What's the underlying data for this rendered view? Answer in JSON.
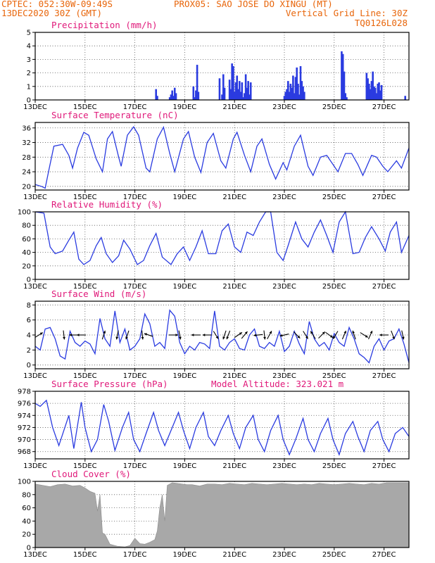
{
  "header": {
    "line1_left": "CPTEC:  052:30W-09:49S",
    "line1_right": "PROX05: SAO JOSE DO XINGU (MT)",
    "line2_left": "13DEC2020 30Z (GMT)",
    "line2_right": "Vertical Grid Line: 30Z",
    "line3_right": "TQ0126L028"
  },
  "colors": {
    "header": "#e8650a",
    "title": "#e0197a",
    "series": "#2a3be0",
    "cloud_fill": "#a8a8a8"
  },
  "x_axis": {
    "tick_labels": [
      "13DEC",
      "15DEC",
      "17DEC",
      "19DEC",
      "21DEC",
      "23DEC",
      "25DEC",
      "27DEC"
    ],
    "tick_days": [
      0,
      2,
      4,
      6,
      8,
      10,
      12,
      14
    ],
    "range_days": [
      0,
      15
    ]
  },
  "chart_data": [
    {
      "type": "bar",
      "title": "Precipitation (mm/h)",
      "ylim": [
        0,
        5
      ],
      "yticks": [
        0,
        1,
        2,
        3,
        4,
        5
      ],
      "grid": true,
      "x_units": "days since 13DEC",
      "x": [
        4.85,
        4.9,
        5.4,
        5.45,
        5.5,
        5.55,
        5.6,
        5.65,
        6.35,
        6.4,
        6.45,
        6.5,
        6.55,
        7.4,
        7.5,
        7.55,
        7.6,
        7.8,
        7.85,
        7.9,
        7.95,
        8.0,
        8.05,
        8.1,
        8.15,
        8.2,
        8.25,
        8.3,
        8.35,
        8.4,
        8.45,
        8.5,
        8.55,
        8.6,
        8.65,
        10.0,
        10.05,
        10.1,
        10.15,
        10.2,
        10.25,
        10.3,
        10.35,
        10.4,
        10.45,
        10.5,
        10.55,
        10.6,
        10.65,
        10.7,
        10.75,
        10.8,
        12.3,
        12.35,
        12.4,
        12.45,
        12.5,
        13.3,
        13.35,
        13.4,
        13.45,
        13.5,
        13.55,
        13.6,
        13.65,
        13.7,
        13.75,
        13.8,
        13.85,
        13.9,
        14.85
      ],
      "values": [
        0.8,
        0.3,
        0.2,
        0.4,
        0.7,
        0.3,
        0.9,
        0.5,
        1.0,
        0.2,
        0.7,
        2.6,
        0.6,
        1.6,
        0.4,
        1.9,
        0.9,
        1.5,
        0.8,
        2.7,
        2.5,
        0.6,
        1.3,
        1.8,
        0.8,
        1.4,
        0.6,
        1.3,
        0.2,
        0.5,
        1.9,
        0.9,
        1.4,
        0.4,
        1.3,
        0.3,
        0.6,
        0.8,
        1.4,
        0.6,
        1.2,
        0.9,
        1.8,
        0.5,
        1.7,
        2.4,
        1.2,
        0.4,
        2.5,
        1.4,
        1.0,
        0.6,
        3.6,
        3.4,
        2.1,
        0.5,
        0.2,
        2.0,
        1.6,
        1.2,
        0.8,
        1.4,
        2.1,
        1.0,
        0.9,
        0.5,
        1.2,
        1.3,
        0.7,
        1.1,
        0.3
      ]
    },
    {
      "type": "line",
      "title": "Surface Temperature (nC)",
      "ylim": [
        19,
        37.5
      ],
      "yticks": [
        20,
        24,
        28,
        32,
        36
      ],
      "grid": true,
      "x_units": "days since 13DEC",
      "x": [
        0.0,
        0.25,
        0.4,
        0.55,
        0.75,
        1.1,
        1.35,
        1.5,
        1.7,
        1.95,
        2.15,
        2.45,
        2.7,
        2.9,
        3.1,
        3.35,
        3.45,
        3.7,
        3.95,
        4.15,
        4.45,
        4.6,
        4.9,
        5.15,
        5.4,
        5.6,
        5.95,
        6.15,
        6.4,
        6.65,
        6.9,
        7.15,
        7.45,
        7.65,
        7.95,
        8.1,
        8.4,
        8.65,
        8.9,
        9.1,
        9.4,
        9.65,
        9.95,
        10.1,
        10.4,
        10.65,
        10.95,
        11.15,
        11.45,
        11.7,
        11.95,
        12.15,
        12.45,
        12.7,
        12.95,
        13.15,
        13.5,
        13.7,
        13.95,
        14.15,
        14.5,
        14.7,
        15.0
      ],
      "values": [
        20.5,
        20,
        19.5,
        24.5,
        31,
        31.5,
        28.5,
        25,
        30.5,
        34.8,
        34,
        27.5,
        24,
        33,
        35,
        28,
        25.5,
        34,
        36.3,
        34,
        25,
        24,
        33,
        36.2,
        29,
        24,
        33,
        35,
        28,
        23.8,
        32,
        34.5,
        27,
        25,
        33,
        34.8,
        28.5,
        24,
        31,
        33,
        26,
        22,
        26.5,
        24.5,
        31,
        34,
        25.5,
        23,
        28,
        28.5,
        26,
        24,
        29,
        29,
        26,
        23,
        28.5,
        28,
        25.5,
        24,
        27,
        25,
        30.5
      ]
    },
    {
      "type": "line",
      "title": "Relative Humidity (%)",
      "ylim": [
        0,
        100
      ],
      "yticks": [
        0,
        20,
        40,
        60,
        80,
        100
      ],
      "grid": true,
      "x_units": "days since 13DEC",
      "x": [
        0.0,
        0.35,
        0.6,
        0.8,
        1.1,
        1.35,
        1.55,
        1.75,
        1.95,
        2.2,
        2.45,
        2.65,
        2.85,
        3.1,
        3.35,
        3.55,
        3.8,
        4.1,
        4.35,
        4.6,
        4.85,
        5.1,
        5.45,
        5.7,
        5.95,
        6.2,
        6.45,
        6.7,
        6.95,
        7.25,
        7.5,
        7.75,
        8.0,
        8.25,
        8.5,
        8.75,
        9.0,
        9.25,
        9.45,
        9.7,
        9.95,
        10.15,
        10.45,
        10.7,
        10.95,
        11.2,
        11.45,
        11.7,
        11.95,
        12.2,
        12.45,
        12.75,
        13.0,
        13.25,
        13.5,
        13.8,
        14.05,
        14.25,
        14.5,
        14.7,
        15.0
      ],
      "values": [
        100,
        98,
        48,
        38,
        42,
        58,
        70,
        30,
        22,
        28,
        50,
        62,
        38,
        25,
        35,
        58,
        45,
        22,
        28,
        50,
        68,
        33,
        22,
        38,
        48,
        28,
        48,
        72,
        38,
        38,
        72,
        82,
        48,
        40,
        70,
        65,
        85,
        100,
        100,
        40,
        28,
        50,
        85,
        60,
        48,
        70,
        88,
        65,
        40,
        85,
        100,
        38,
        40,
        62,
        78,
        60,
        42,
        70,
        85,
        40,
        65
      ]
    },
    {
      "type": "line",
      "title": "Surface Wind (m/s)",
      "ylim": [
        -0.5,
        8.5
      ],
      "yticks": [
        0,
        2,
        4,
        6,
        8
      ],
      "grid": true,
      "x_units": "days since 13DEC",
      "x": [
        0.0,
        0.2,
        0.4,
        0.6,
        0.8,
        1.0,
        1.2,
        1.4,
        1.6,
        1.8,
        2.0,
        2.2,
        2.4,
        2.6,
        2.8,
        3.0,
        3.2,
        3.4,
        3.6,
        3.8,
        4.0,
        4.2,
        4.4,
        4.6,
        4.8,
        5.0,
        5.2,
        5.4,
        5.6,
        5.8,
        6.0,
        6.2,
        6.4,
        6.6,
        6.8,
        7.0,
        7.2,
        7.4,
        7.6,
        7.8,
        8.0,
        8.2,
        8.4,
        8.6,
        8.8,
        9.0,
        9.2,
        9.4,
        9.6,
        9.8,
        10.0,
        10.2,
        10.4,
        10.6,
        10.8,
        11.0,
        11.2,
        11.4,
        11.6,
        11.8,
        12.0,
        12.2,
        12.4,
        12.6,
        12.8,
        13.0,
        13.2,
        13.4,
        13.6,
        13.8,
        14.0,
        14.2,
        14.4,
        14.6,
        14.8,
        15.0
      ],
      "values": [
        2.5,
        2.0,
        4.8,
        5.0,
        3.5,
        1.2,
        0.8,
        4.5,
        3.0,
        2.5,
        3.2,
        2.8,
        1.5,
        6.2,
        3.5,
        2.5,
        7.2,
        3.0,
        4.8,
        2.0,
        2.5,
        3.5,
        6.8,
        5.5,
        2.5,
        3.0,
        2.2,
        7.3,
        6.5,
        3.0,
        1.5,
        2.5,
        2.0,
        3.0,
        2.8,
        2.2,
        7.2,
        2.5,
        2.0,
        3.0,
        3.5,
        2.2,
        2.0,
        4.0,
        4.8,
        2.5,
        2.2,
        3.0,
        2.5,
        4.5,
        1.8,
        2.5,
        4.5,
        2.8,
        1.5,
        5.8,
        3.5,
        2.5,
        3.0,
        2.0,
        4.2,
        3.0,
        2.5,
        5.0,
        3.5,
        1.5,
        1.0,
        0.3,
        2.5,
        3.5,
        2.0,
        3.2,
        3.5,
        4.8,
        2.8,
        0.3
      ]
    },
    {
      "type": "line",
      "title": "Surface Pressure (hPa)",
      "annotation": "Model Altitude: 323.021 m",
      "ylim": [
        966.8,
        978
      ],
      "yticks": [
        968,
        970,
        972,
        974,
        976,
        978
      ],
      "grid": true,
      "x_units": "days since 13DEC",
      "x": [
        0.0,
        0.2,
        0.45,
        0.7,
        0.95,
        1.15,
        1.35,
        1.55,
        1.85,
        2.0,
        2.25,
        2.5,
        2.75,
        2.95,
        3.2,
        3.5,
        3.75,
        3.95,
        4.2,
        4.45,
        4.75,
        4.95,
        5.2,
        5.45,
        5.75,
        5.95,
        6.2,
        6.45,
        6.75,
        6.95,
        7.2,
        7.45,
        7.75,
        7.95,
        8.2,
        8.45,
        8.75,
        8.95,
        9.2,
        9.45,
        9.75,
        9.95,
        10.2,
        10.45,
        10.75,
        10.95,
        11.2,
        11.45,
        11.75,
        11.95,
        12.2,
        12.45,
        12.75,
        12.95,
        13.2,
        13.45,
        13.75,
        13.95,
        14.2,
        14.45,
        14.75,
        15.0
      ],
      "values": [
        976,
        975.5,
        976.5,
        972,
        969,
        971.5,
        974,
        968.5,
        976.2,
        972,
        968,
        970,
        975.8,
        973,
        968.2,
        972,
        974.5,
        970,
        968,
        971,
        974.5,
        971.5,
        969,
        971.5,
        974.5,
        971.5,
        968.5,
        972,
        974.5,
        970.5,
        969,
        971.5,
        974,
        971,
        968.5,
        972,
        974,
        970,
        968,
        971.5,
        974,
        970,
        967.5,
        970,
        973.5,
        970,
        968,
        971,
        973.5,
        970,
        967.5,
        971,
        973,
        970.5,
        968,
        971.5,
        973,
        970,
        968,
        971,
        972,
        970.5
      ]
    },
    {
      "type": "area",
      "title": "Cloud Cover (%)",
      "ylim": [
        0,
        100
      ],
      "yticks": [
        0,
        20,
        40,
        60,
        80,
        100
      ],
      "grid": true,
      "x_units": "days since 13DEC",
      "x": [
        0.0,
        0.3,
        0.6,
        0.9,
        1.2,
        1.5,
        1.8,
        2.0,
        2.2,
        2.4,
        2.5,
        2.6,
        2.7,
        2.8,
        3.0,
        3.3,
        3.6,
        3.8,
        4.0,
        4.2,
        4.4,
        4.6,
        4.8,
        4.9,
        5.0,
        5.1,
        5.2,
        5.3,
        5.5,
        5.7,
        5.9,
        6.1,
        6.3,
        6.6,
        6.9,
        7.2,
        7.5,
        7.8,
        8.1,
        8.4,
        8.7,
        9.0,
        9.3,
        9.6,
        9.9,
        10.2,
        10.5,
        10.8,
        11.1,
        11.4,
        11.7,
        12.0,
        12.3,
        12.6,
        12.9,
        13.2,
        13.5,
        13.8,
        14.1,
        14.4,
        14.7,
        15.0
      ],
      "values": [
        96,
        94,
        92,
        95,
        96,
        93,
        94,
        90,
        85,
        82,
        55,
        80,
        22,
        20,
        5,
        2,
        1,
        3,
        14,
        6,
        5,
        8,
        12,
        25,
        60,
        80,
        40,
        94,
        98,
        97,
        96,
        95,
        95,
        93,
        96,
        96,
        95,
        97,
        96,
        95,
        97,
        96,
        95,
        96,
        97,
        96,
        95,
        96,
        95,
        97,
        96,
        95,
        96,
        97,
        96,
        95,
        97,
        96,
        98,
        98,
        98,
        98
      ]
    },
    {
      "type": "wind_vectors",
      "title": "Surface Wind (m/s) direction",
      "x_units": "days since 13DEC",
      "x": [
        0.15,
        1.15,
        1.55,
        1.85,
        2.75,
        3.3,
        3.7,
        4.3,
        4.55,
        5.55,
        5.8,
        6.45,
        6.9,
        7.25,
        7.6,
        7.75,
        8.15,
        8.4,
        8.95,
        9.2,
        9.4,
        10.0,
        10.5,
        10.85,
        11.15,
        11.5,
        11.8,
        12.05,
        12.4,
        12.8,
        13.2,
        13.45,
        14.0,
        14.35,
        14.75
      ],
      "u": [
        0.8,
        0.1,
        -0.8,
        -0.9,
        0.3,
        -0.2,
        -0.3,
        0.1,
        -0.9,
        0.5,
        0.2,
        -0.4,
        -0.7,
        0.5,
        -0.3,
        -0.3,
        0.6,
        0.5,
        -0.9,
        0.1,
        0.5,
        -0.9,
        0.7,
        0.5,
        -0.5,
        0.6,
        0.7,
        -0.5,
        0.3,
        -0.3,
        0.8,
        0.4,
        -0.9,
        0.3,
        0.2
      ],
      "v": [
        0.5,
        -0.9,
        0.0,
        0.0,
        0.9,
        -1.0,
        -0.9,
        -1.0,
        0.3,
        0.0,
        -1.0,
        0.0,
        0.0,
        -0.8,
        -0.9,
        -0.8,
        0.4,
        0.6,
        -0.1,
        -0.9,
        0.9,
        -0.2,
        -0.7,
        -0.8,
        0.8,
        0.6,
        -0.5,
        -0.8,
        0.7,
        0.9,
        -0.5,
        0.9,
        0.0,
        -0.8,
        -0.9
      ]
    }
  ]
}
